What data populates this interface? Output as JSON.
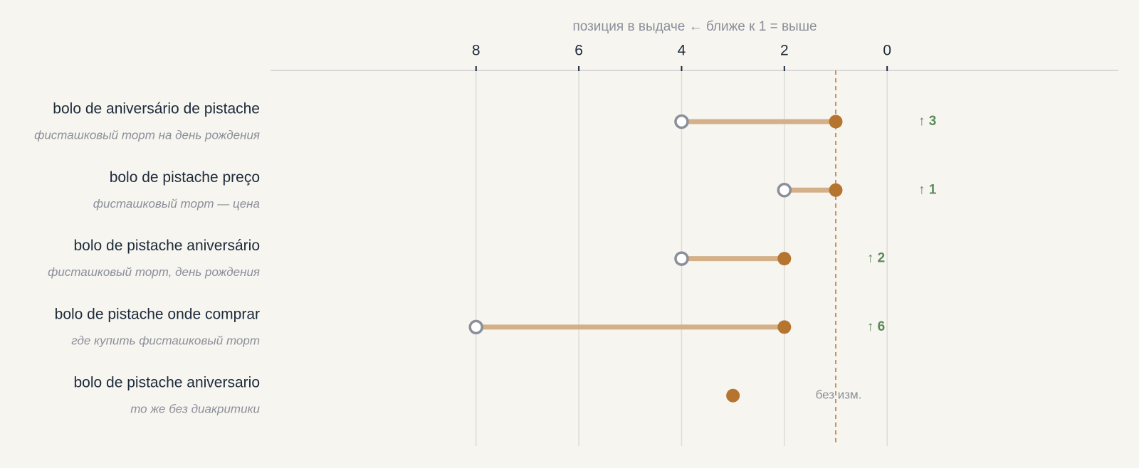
{
  "chart_data": {
    "type": "dumbbell",
    "title": "позиция в выдаче  ←  ближе к 1 = выше",
    "categories": [
      "bolo de aniversário de pistache",
      "bolo de pistache preço",
      "bolo de pistache aniversário",
      "bolo de pistache onde comprar",
      "bolo de pistache aniversario"
    ],
    "subtitles": [
      "фисташковый торт на день рождения",
      "фисташковый торт — цена",
      "фисташковый торт, день рождения",
      "где купить фисташковый торт",
      "то же без диакритики"
    ],
    "before": {
      "color": "#8a8f99",
      "values": [
        4,
        2,
        4,
        8,
        3
      ]
    },
    "after": {
      "color": "#b5752f",
      "values": [
        1,
        1,
        2,
        2,
        3
      ]
    },
    "change": {
      "color": "#5b8a5b",
      "values": [
        3,
        1,
        2,
        6,
        0
      ],
      "value_labels": [
        "↑ 3",
        "↑ 1",
        "↑ 2",
        "↑ 6",
        "без изм."
      ]
    },
    "reference_line": 1,
    "xlim": [
      12,
      -4.5
    ],
    "xticks": [
      8,
      6,
      4,
      2,
      0
    ],
    "grid": true
  }
}
